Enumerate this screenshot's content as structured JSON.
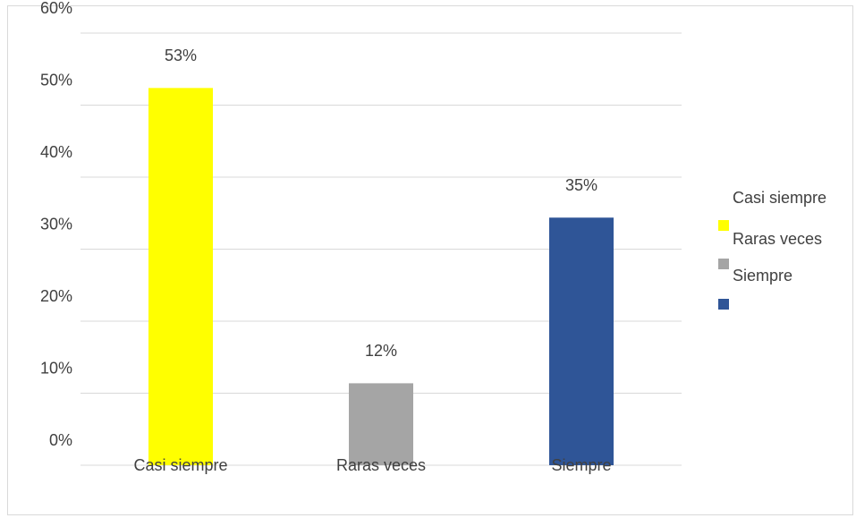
{
  "chart_data": {
    "type": "bar",
    "categories": [
      "Casi siempre",
      "Raras veces",
      "Siempre"
    ],
    "values": [
      53,
      12,
      35
    ],
    "data_labels": [
      "53%",
      "12%",
      "35%"
    ],
    "colors": [
      "#ffff00",
      "#a5a5a5",
      "#2f5597"
    ],
    "ylim": [
      0,
      60
    ],
    "y_ticks": [
      0,
      10,
      20,
      30,
      40,
      50,
      60
    ],
    "y_tick_labels": [
      "0%",
      "10%",
      "20%",
      "30%",
      "40%",
      "50%",
      "60%"
    ],
    "grid": true,
    "legend": {
      "placement": "right",
      "entries": [
        "Casi siempre",
        "Raras veces",
        "Siempre"
      ]
    }
  }
}
